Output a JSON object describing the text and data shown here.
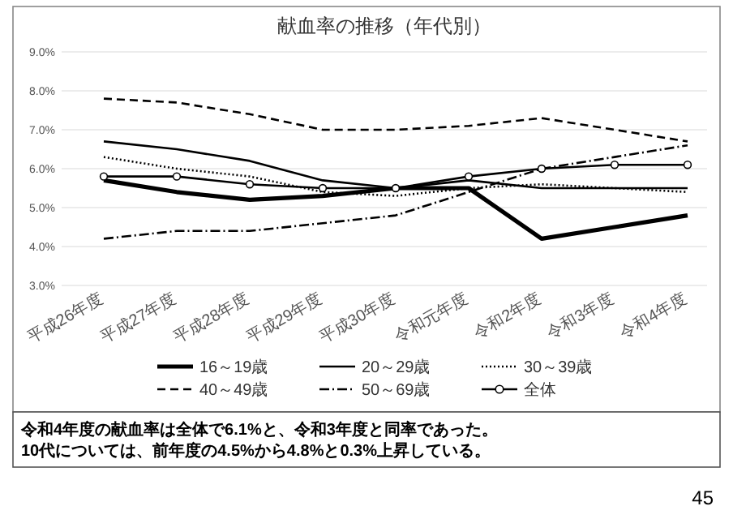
{
  "chart_data": {
    "type": "line",
    "title": "献血率の推移（年代別）",
    "categories": [
      "平成26年度",
      "平成27年度",
      "平成28年度",
      "平成29年度",
      "平成30年度",
      "令和元年度",
      "令和2年度",
      "令和3年度",
      "令和4年度"
    ],
    "series": [
      {
        "name": "16～19歳",
        "color": "#000000",
        "line_style": "solid",
        "marker": "none",
        "values": [
          5.7,
          5.4,
          5.2,
          5.3,
          5.5,
          5.5,
          4.2,
          4.5,
          4.8
        ]
      },
      {
        "name": "20～29歳",
        "color": "#000000",
        "line_style": "solid",
        "marker": "none",
        "values": [
          6.7,
          6.5,
          6.2,
          5.7,
          5.5,
          5.7,
          5.5,
          5.5,
          5.5
        ]
      },
      {
        "name": "30～39歳",
        "color": "#000000",
        "line_style": "dotted",
        "marker": "none",
        "values": [
          6.3,
          6.0,
          5.8,
          5.4,
          5.3,
          5.5,
          5.6,
          5.5,
          5.4
        ]
      },
      {
        "name": "40～49歳",
        "color": "#000000",
        "line_style": "dashed",
        "marker": "none",
        "values": [
          7.8,
          7.7,
          7.4,
          7.0,
          7.0,
          7.1,
          7.3,
          7.0,
          6.7
        ]
      },
      {
        "name": "50～69歳",
        "color": "#000000",
        "line_style": "dashdot",
        "marker": "none",
        "values": [
          4.2,
          4.4,
          4.4,
          4.6,
          4.8,
          5.4,
          6.0,
          6.3,
          6.6
        ]
      },
      {
        "name": "全体",
        "color": "#000000",
        "line_style": "solid",
        "marker": "circle",
        "values": [
          5.8,
          5.8,
          5.6,
          5.5,
          5.5,
          5.8,
          6.0,
          6.1,
          6.1
        ]
      }
    ],
    "ylim": [
      3,
      9
    ],
    "yticks": [
      {
        "value": 3,
        "label": "3.0%"
      },
      {
        "value": 4,
        "label": "4.0%"
      },
      {
        "value": 5,
        "label": "5.0%"
      },
      {
        "value": 6,
        "label": "6.0%"
      },
      {
        "value": 7,
        "label": "7.0%"
      },
      {
        "value": 8,
        "label": "8.0%"
      },
      {
        "value": 9,
        "label": "9.0%"
      }
    ],
    "grid": "y",
    "legend": "bottom",
    "annotations": [
      "令和4年度の献血率は全体で6.1%と、令和3年度と同率であった。",
      "10代については、前年度の4.5%から4.8%と0.3%上昇している。",
      "45"
    ]
  }
}
